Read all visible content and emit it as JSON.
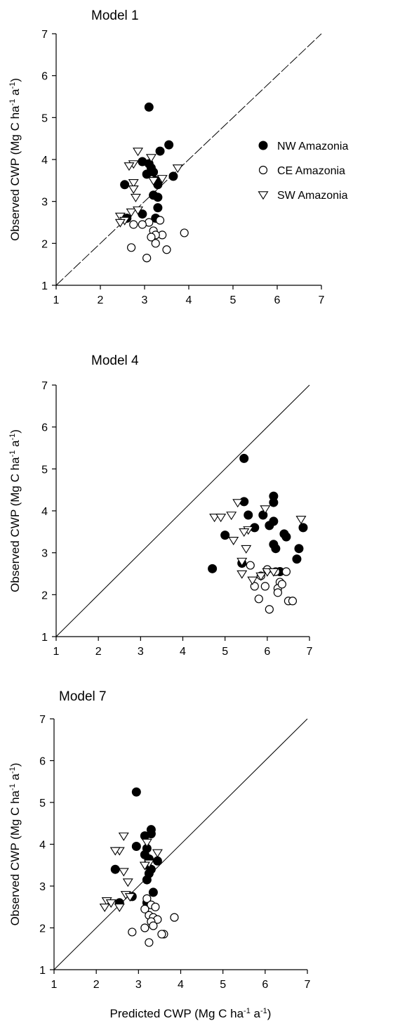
{
  "figure": {
    "xlabel": {
      "parts": [
        {
          "text": "Predicted CWP (Mg C ha"
        },
        {
          "text": "-1",
          "sup": true
        },
        {
          "text": " a"
        },
        {
          "text": "-1",
          "sup": true
        },
        {
          "text": ")"
        }
      ]
    },
    "ylabel": {
      "parts": [
        {
          "text": "Observed CWP (Mg C ha"
        },
        {
          "text": "-1",
          "sup": true
        },
        {
          "text": " a"
        },
        {
          "text": "-1",
          "sup": true
        },
        {
          "text": ")"
        }
      ]
    }
  },
  "chart_data": [
    {
      "type": "scatter",
      "title": "Model 1",
      "xlim": [
        1,
        7
      ],
      "ylim": [
        1,
        7
      ],
      "xticks": [
        "1",
        "2",
        "3",
        "4",
        "5",
        "6",
        "7"
      ],
      "yticks": [
        "1",
        "2",
        "3",
        "4",
        "5",
        "6",
        "7"
      ],
      "reference_line": {
        "from": [
          1,
          1
        ],
        "to": [
          7,
          7
        ],
        "style": "dashed"
      },
      "legend": {
        "placement": "right",
        "entries": [
          {
            "label": "NW Amazonia",
            "marker": "filled-circle"
          },
          {
            "label": "CE Amazonia",
            "marker": "open-circle"
          },
          {
            "label": "SW Amazonia",
            "marker": "open-triangle-down"
          }
        ]
      },
      "series": [
        {
          "name": "NW Amazonia",
          "marker": "filled-circle",
          "points": [
            [
              3.1,
              5.25
            ],
            [
              3.55,
              4.35
            ],
            [
              3.35,
              4.2
            ],
            [
              2.95,
              3.95
            ],
            [
              3.1,
              3.9
            ],
            [
              3.15,
              3.8
            ],
            [
              3.2,
              3.7
            ],
            [
              3.05,
              3.65
            ],
            [
              3.25,
              3.5
            ],
            [
              3.3,
              3.4
            ],
            [
              2.55,
              3.4
            ],
            [
              3.65,
              3.6
            ],
            [
              3.2,
              3.15
            ],
            [
              3.3,
              3.1
            ],
            [
              3.3,
              2.85
            ],
            [
              3.25,
              2.6
            ],
            [
              2.95,
              2.7
            ],
            [
              2.6,
              2.6
            ]
          ]
        },
        {
          "name": "CE Amazonia",
          "marker": "open-circle",
          "points": [
            [
              3.9,
              2.25
            ],
            [
              3.35,
              2.55
            ],
            [
              3.1,
              2.5
            ],
            [
              2.95,
              2.45
            ],
            [
              2.75,
              2.45
            ],
            [
              3.2,
              2.3
            ],
            [
              3.4,
              2.2
            ],
            [
              3.25,
              2.2
            ],
            [
              3.15,
              2.15
            ],
            [
              3.25,
              2.0
            ],
            [
              2.7,
              1.9
            ],
            [
              3.5,
              1.85
            ],
            [
              3.05,
              1.65
            ]
          ]
        },
        {
          "name": "SW Amazonia",
          "marker": "open-triangle-down",
          "points": [
            [
              2.85,
              4.2
            ],
            [
              3.15,
              4.05
            ],
            [
              2.75,
              3.9
            ],
            [
              2.65,
              3.85
            ],
            [
              3.75,
              3.8
            ],
            [
              3.4,
              3.55
            ],
            [
              3.2,
              3.5
            ],
            [
              2.75,
              3.45
            ],
            [
              2.75,
              3.3
            ],
            [
              2.8,
              3.1
            ],
            [
              2.7,
              2.75
            ],
            [
              2.85,
              2.8
            ],
            [
              2.45,
              2.65
            ],
            [
              2.55,
              2.55
            ],
            [
              2.45,
              2.5
            ]
          ]
        }
      ]
    },
    {
      "type": "scatter",
      "title": "Model 4",
      "xlim": [
        1,
        7
      ],
      "ylim": [
        1,
        7
      ],
      "xticks": [
        "1",
        "2",
        "3",
        "4",
        "5",
        "6",
        "7"
      ],
      "yticks": [
        "1",
        "2",
        "3",
        "4",
        "5",
        "6",
        "7"
      ],
      "reference_line": {
        "from": [
          1,
          1
        ],
        "to": [
          7,
          7
        ],
        "style": "solid"
      },
      "series": [
        {
          "name": "NW Amazonia",
          "marker": "filled-circle",
          "points": [
            [
              5.45,
              5.25
            ],
            [
              6.15,
              4.35
            ],
            [
              5.45,
              4.22
            ],
            [
              6.15,
              4.2
            ],
            [
              5.55,
              3.9
            ],
            [
              5.9,
              3.9
            ],
            [
              6.05,
              3.65
            ],
            [
              6.15,
              3.75
            ],
            [
              5.0,
              3.42
            ],
            [
              5.7,
              3.6
            ],
            [
              6.4,
              3.45
            ],
            [
              6.85,
              3.6
            ],
            [
              6.45,
              3.38
            ],
            [
              6.15,
              3.2
            ],
            [
              6.2,
              3.1
            ],
            [
              6.75,
              3.1
            ],
            [
              6.7,
              2.85
            ],
            [
              4.7,
              2.62
            ],
            [
              5.4,
              2.75
            ],
            [
              6.3,
              2.55
            ]
          ]
        },
        {
          "name": "CE Amazonia",
          "marker": "open-circle",
          "points": [
            [
              5.6,
              2.7
            ],
            [
              6.0,
              2.6
            ],
            [
              6.2,
              2.55
            ],
            [
              6.45,
              2.55
            ],
            [
              6.3,
              2.3
            ],
            [
              6.25,
              2.15
            ],
            [
              5.85,
              2.45
            ],
            [
              6.35,
              2.25
            ],
            [
              5.95,
              2.2
            ],
            [
              5.7,
              2.2
            ],
            [
              6.25,
              2.05
            ],
            [
              5.8,
              1.9
            ],
            [
              6.5,
              1.85
            ],
            [
              6.6,
              1.85
            ],
            [
              6.05,
              1.65
            ]
          ]
        },
        {
          "name": "SW Amazonia",
          "marker": "open-triangle-down",
          "points": [
            [
              5.3,
              4.2
            ],
            [
              5.95,
              4.05
            ],
            [
              4.75,
              3.85
            ],
            [
              4.9,
              3.85
            ],
            [
              5.15,
              3.9
            ],
            [
              6.8,
              3.8
            ],
            [
              5.55,
              3.55
            ],
            [
              5.45,
              3.5
            ],
            [
              5.2,
              3.3
            ],
            [
              5.5,
              3.1
            ],
            [
              5.4,
              2.8
            ],
            [
              5.4,
              2.5
            ],
            [
              6.0,
              2.55
            ],
            [
              6.15,
              2.55
            ],
            [
              5.85,
              2.45
            ],
            [
              5.65,
              2.35
            ]
          ]
        }
      ]
    },
    {
      "type": "scatter",
      "title": "Model 7",
      "xlim": [
        1,
        7
      ],
      "ylim": [
        1,
        7
      ],
      "xticks": [
        "1",
        "2",
        "3",
        "4",
        "5",
        "6",
        "7"
      ],
      "yticks": [
        "1",
        "2",
        "3",
        "4",
        "5",
        "6",
        "7"
      ],
      "reference_line": {
        "from": [
          1,
          1
        ],
        "to": [
          7,
          7
        ],
        "style": "solid"
      },
      "series": [
        {
          "name": "NW Amazonia",
          "marker": "filled-circle",
          "points": [
            [
              2.95,
              5.25
            ],
            [
              3.3,
              4.35
            ],
            [
              3.15,
              4.2
            ],
            [
              3.3,
              4.25
            ],
            [
              2.95,
              3.95
            ],
            [
              3.2,
              3.9
            ],
            [
              3.15,
              3.75
            ],
            [
              3.25,
              3.65
            ],
            [
              3.2,
              3.5
            ],
            [
              3.45,
              3.6
            ],
            [
              3.3,
              3.4
            ],
            [
              2.45,
              3.4
            ],
            [
              3.2,
              3.15
            ],
            [
              3.25,
              3.3
            ],
            [
              3.35,
              2.85
            ],
            [
              2.85,
              2.75
            ],
            [
              3.2,
              2.6
            ],
            [
              2.55,
              2.6
            ]
          ]
        },
        {
          "name": "CE Amazonia",
          "marker": "open-circle",
          "points": [
            [
              3.85,
              2.25
            ],
            [
              3.2,
              2.7
            ],
            [
              3.3,
              2.55
            ],
            [
              3.4,
              2.5
            ],
            [
              3.15,
              2.45
            ],
            [
              3.25,
              2.3
            ],
            [
              3.35,
              2.25
            ],
            [
              3.45,
              2.2
            ],
            [
              3.3,
              2.15
            ],
            [
              3.35,
              2.05
            ],
            [
              2.85,
              1.9
            ],
            [
              3.6,
              1.85
            ],
            [
              3.55,
              1.85
            ],
            [
              3.25,
              1.65
            ],
            [
              3.15,
              2.0
            ]
          ]
        },
        {
          "name": "SW Amazonia",
          "marker": "open-triangle-down",
          "points": [
            [
              2.65,
              4.2
            ],
            [
              3.2,
              4.05
            ],
            [
              2.55,
              3.85
            ],
            [
              2.45,
              3.85
            ],
            [
              3.45,
              3.8
            ],
            [
              3.25,
              3.55
            ],
            [
              3.15,
              3.5
            ],
            [
              2.65,
              3.35
            ],
            [
              2.75,
              3.1
            ],
            [
              2.7,
              2.8
            ],
            [
              2.8,
              2.75
            ],
            [
              2.25,
              2.65
            ],
            [
              2.35,
              2.6
            ],
            [
              2.55,
              2.5
            ],
            [
              2.2,
              2.5
            ]
          ]
        }
      ]
    }
  ]
}
